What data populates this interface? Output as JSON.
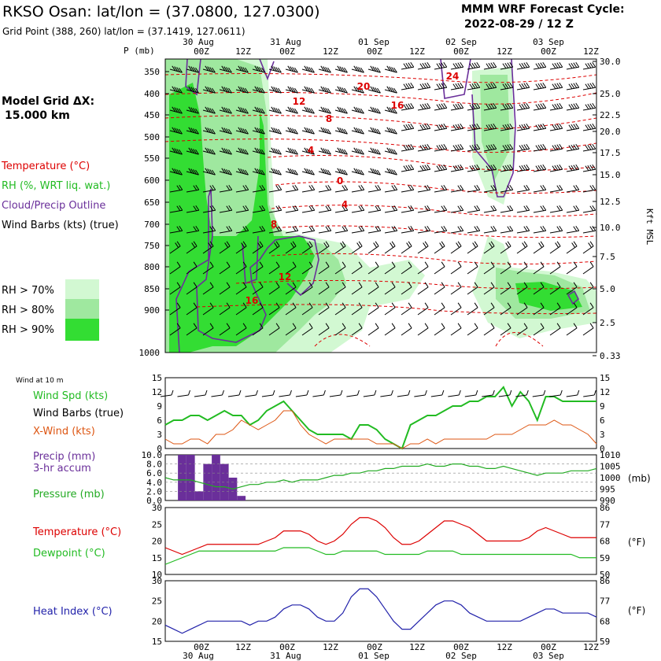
{
  "header": {
    "title": "RKSO Osan:  lat/lon = (37.0800, 127.0300)",
    "grid_point": "Grid Point (388, 260) lat/lon = (37.1419, 127.0611)",
    "forecast_label": "MMM WRF Forecast Cycle:",
    "forecast_cycle": "2022-08-29 / 12  Z",
    "model_grid_label": "Model Grid ΔX:",
    "model_grid_value": "15.000 km"
  },
  "time_axis": {
    "dates": [
      "30 Aug",
      "31 Aug",
      "01 Sep",
      "02 Sep",
      "03 Sep"
    ],
    "hours": [
      "00Z",
      "12Z",
      "00Z",
      "12Z",
      "00Z",
      "12Z",
      "00Z",
      "12Z",
      "00Z",
      "12Z"
    ]
  },
  "colors": {
    "temperature": "#dd0000",
    "rh": "#22bb22",
    "cloud": "#6a2f9a",
    "rh70": "#d2f8d2",
    "rh80": "#9fe89f",
    "rh90": "#33dd33",
    "xwind": "#dd5511",
    "pressure": "#22aa22",
    "dewpoint": "#22bb22",
    "heat": "#2222aa"
  },
  "legend_top": {
    "temperature": "Temperature (°C)",
    "rh": "RH (%, WRT liq. wat.)",
    "cloud": "Cloud/Precip Outline",
    "barbs": "Wind Barbs (kts) (true)",
    "rh70": "RH > 70%",
    "rh80": "RH > 80%",
    "rh90": "RH > 90%"
  },
  "legend_bottom": {
    "wind10": "Wind at 10 m",
    "wind_spd": "Wind Spd (kts)",
    "wind_barbs": "Wind Barbs (true)",
    "xwind": "X-Wind (kts)",
    "precip": "Precip (mm)",
    "precip_accum": "3-hr accum",
    "pressure": "Pressure (mb)",
    "temperature": "Temperature (°C)",
    "dewpoint": "Dewpoint (°C)",
    "heat_index": "Heat Index (°C)",
    "mb_unit": "(mb)",
    "f_unit_1": "(°F)",
    "f_unit_2": "(°F)",
    "p_axis_label": "P (mb)",
    "kft_label": "Kft MSL"
  },
  "chart_data": [
    {
      "type": "heatmap",
      "name": "vertical cross-section",
      "pressure_levels": [
        350,
        400,
        450,
        500,
        550,
        600,
        650,
        700,
        750,
        800,
        850,
        900,
        1000
      ],
      "pressure_ticks": [
        "350",
        "400",
        "450",
        "500",
        "550",
        "600",
        "650",
        "700",
        "750",
        "800",
        "850",
        "900",
        "1000"
      ],
      "height_kft": [
        "30.0",
        "25.0",
        "22.5",
        "20.0",
        "17.5",
        "15.0",
        "12.5",
        "10.0",
        "7.5",
        "5.0",
        "2.5",
        "0.33"
      ],
      "temperature_contour_labels_c": [
        "24",
        "20",
        "16",
        "12",
        "8",
        "4",
        "0",
        "4",
        "8",
        "12",
        "16"
      ]
    },
    {
      "type": "line",
      "name": "10 m wind",
      "ylim": [
        0,
        15
      ],
      "yticks": [
        "15",
        "12",
        "9",
        "6",
        "3",
        "0"
      ],
      "series": [
        {
          "name": "Wind Spd (kts)",
          "values": [
            5,
            6,
            6,
            7,
            7,
            6,
            7,
            8,
            7,
            7,
            5,
            6,
            8,
            9,
            10,
            8,
            6,
            4,
            3,
            3,
            3,
            3,
            2,
            5,
            5,
            4,
            2,
            1,
            0,
            5,
            6,
            7,
            7,
            8,
            9,
            9,
            10,
            10,
            11,
            11,
            13,
            9,
            12,
            10,
            6,
            11,
            11,
            10,
            10,
            10,
            10,
            10
          ]
        },
        {
          "name": "X-Wind (kts)",
          "values": [
            2,
            1,
            1,
            2,
            2,
            1,
            3,
            3,
            4,
            6,
            5,
            4,
            5,
            6,
            8,
            8,
            5,
            3,
            2,
            1,
            2,
            2,
            2,
            2,
            2,
            1,
            1,
            1,
            0,
            1,
            1,
            2,
            1,
            2,
            2,
            2,
            2,
            2,
            2,
            3,
            3,
            3,
            4,
            5,
            5,
            5,
            6,
            5,
            5,
            4,
            3,
            1
          ]
        }
      ]
    },
    {
      "type": "bar",
      "name": "3-hr precipitation (mm)",
      "ylim": [
        0,
        10
      ],
      "yticks": [
        "10.0",
        "8.0",
        "6.0",
        "4.0",
        "2.0",
        "0.0"
      ],
      "values": [
        0,
        0,
        10,
        10,
        2,
        8,
        10,
        8,
        5,
        1,
        0,
        0,
        0,
        0,
        0,
        0,
        0,
        0,
        0,
        0,
        0,
        0,
        0,
        0,
        0,
        0,
        0,
        0,
        0,
        0,
        0,
        0,
        0,
        0,
        0,
        0,
        0,
        0,
        0,
        0,
        0,
        0,
        0,
        0,
        0,
        0,
        0,
        0,
        0,
        0,
        0,
        0
      ]
    },
    {
      "type": "line",
      "name": "pressure (mb)",
      "ylim": [
        990,
        1010
      ],
      "yticks": [
        "1010",
        "1005",
        "1000",
        "995",
        "990"
      ],
      "series": [
        {
          "name": "Pressure (mb)",
          "values": [
            1000,
            999,
            999,
            999,
            998,
            997,
            996,
            996,
            995,
            996,
            997,
            997,
            998,
            998,
            999,
            998,
            999,
            999,
            999,
            1000,
            1001,
            1001,
            1002,
            1002,
            1003,
            1003,
            1004,
            1004,
            1005,
            1005,
            1005,
            1006,
            1005,
            1005,
            1006,
            1006,
            1005,
            1005,
            1004,
            1004,
            1005,
            1004,
            1003,
            1002,
            1001,
            1002,
            1002,
            1002,
            1003,
            1003,
            1003,
            1004
          ]
        }
      ]
    },
    {
      "type": "line",
      "name": "temperature and dewpoint",
      "ylim": [
        10,
        30
      ],
      "yticks": [
        "30",
        "25",
        "20",
        "15",
        "10"
      ],
      "yticks_f": [
        "86",
        "77",
        "68",
        "59",
        "50"
      ],
      "series": [
        {
          "name": "Temperature (°C)",
          "values": [
            18,
            17,
            16,
            17,
            18,
            19,
            19,
            19,
            19,
            19,
            19,
            19,
            20,
            21,
            23,
            23,
            23,
            22,
            20,
            19,
            20,
            22,
            25,
            27,
            27,
            26,
            24,
            21,
            19,
            19,
            20,
            22,
            24,
            26,
            26,
            25,
            24,
            22,
            20,
            20,
            20,
            20,
            20,
            21,
            23,
            24,
            23,
            22,
            21,
            21,
            21,
            21
          ]
        },
        {
          "name": "Dewpoint (°C)",
          "values": [
            13,
            14,
            15,
            16,
            17,
            17,
            17,
            17,
            17,
            17,
            17,
            17,
            17,
            17,
            18,
            18,
            18,
            18,
            17,
            16,
            16,
            17,
            17,
            17,
            17,
            17,
            16,
            16,
            16,
            16,
            16,
            17,
            17,
            17,
            17,
            16,
            16,
            16,
            16,
            16,
            16,
            16,
            16,
            16,
            16,
            16,
            16,
            16,
            16,
            15,
            15,
            15
          ]
        }
      ]
    },
    {
      "type": "line",
      "name": "heat index",
      "ylim": [
        15,
        30
      ],
      "yticks": [
        "30",
        "25",
        "20",
        "15"
      ],
      "yticks_f": [
        "86",
        "77",
        "68",
        "59"
      ],
      "series": [
        {
          "name": "Heat Index (°C)",
          "values": [
            19,
            18,
            17,
            18,
            19,
            20,
            20,
            20,
            20,
            20,
            19,
            20,
            20,
            21,
            23,
            24,
            24,
            23,
            21,
            20,
            20,
            22,
            26,
            28,
            28,
            26,
            23,
            20,
            18,
            18,
            20,
            22,
            24,
            25,
            25,
            24,
            22,
            21,
            20,
            20,
            20,
            20,
            20,
            21,
            22,
            23,
            23,
            22,
            22,
            22,
            22,
            21
          ]
        }
      ]
    }
  ]
}
